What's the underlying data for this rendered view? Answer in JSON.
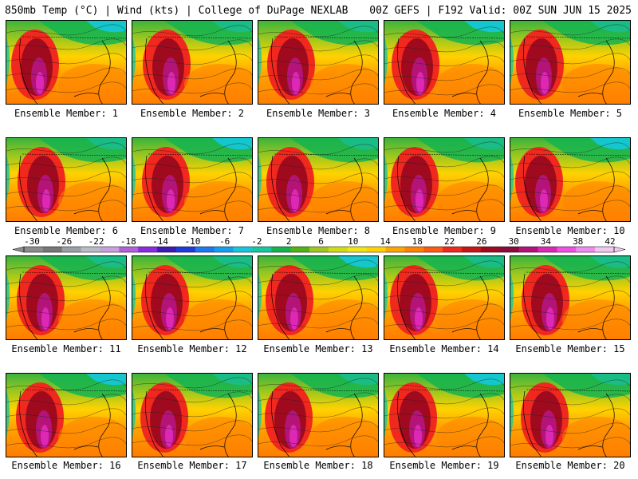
{
  "header": {
    "left": "850mb Temp (°C) | Wind (kts) | College of DuPage NEXLAB",
    "right": "00Z GEFS | F192 Valid: 00Z SUN JUN 15 2025"
  },
  "members": [
    {
      "label": "Ensemble Member: 1"
    },
    {
      "label": "Ensemble Member: 2"
    },
    {
      "label": "Ensemble Member: 3"
    },
    {
      "label": "Ensemble Member: 4"
    },
    {
      "label": "Ensemble Member: 5"
    },
    {
      "label": "Ensemble Member: 6"
    },
    {
      "label": "Ensemble Member: 7"
    },
    {
      "label": "Ensemble Member: 8"
    },
    {
      "label": "Ensemble Member: 9"
    },
    {
      "label": "Ensemble Member: 10"
    },
    {
      "label": "Ensemble Member: 11"
    },
    {
      "label": "Ensemble Member: 12"
    },
    {
      "label": "Ensemble Member: 13"
    },
    {
      "label": "Ensemble Member: 14"
    },
    {
      "label": "Ensemble Member: 15"
    },
    {
      "label": "Ensemble Member: 16"
    },
    {
      "label": "Ensemble Member: 17"
    },
    {
      "label": "Ensemble Member: 18"
    },
    {
      "label": "Ensemble Member: 19"
    },
    {
      "label": "Ensemble Member: 20"
    }
  ],
  "colorbar": {
    "ticks": [
      "-30",
      "-26",
      "-22",
      "-18",
      "-14",
      "-10",
      "-6",
      "-2",
      "2",
      "6",
      "10",
      "14",
      "18",
      "22",
      "26",
      "30",
      "34",
      "38",
      "42"
    ],
    "colors": [
      "#8c8c8c",
      "#777777",
      "#9aa0a6",
      "#b8bcc4",
      "#c8a0e0",
      "#b060d8",
      "#8a2be2",
      "#3c1cb4",
      "#1e3cdc",
      "#1e78f0",
      "#14a0f0",
      "#14c8dc",
      "#14c8a0",
      "#14b450",
      "#50b414",
      "#a0c81e",
      "#d2dc14",
      "#f0e614",
      "#ffd200",
      "#ffa500",
      "#ff8200",
      "#ff5a14",
      "#f0281e",
      "#c81414",
      "#a00a1e",
      "#8c0a3c",
      "#b41478",
      "#dc28b4",
      "#f050e6",
      "#f08cf0",
      "#f0c8f0"
    ]
  }
}
